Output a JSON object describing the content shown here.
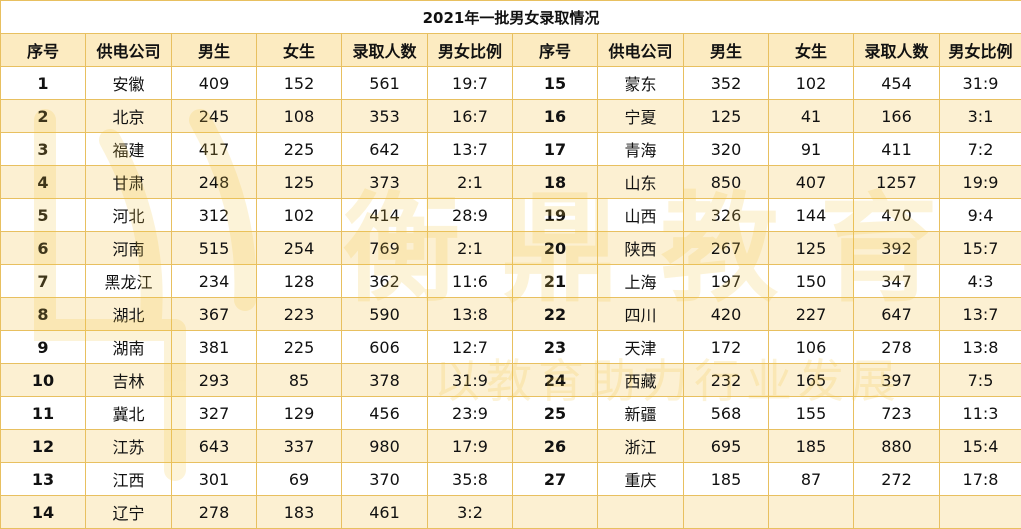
{
  "title": "2021年一批男女录取情况",
  "headers": [
    "序号",
    "供电公司",
    "男生",
    "女生",
    "录取人数",
    "男女比例",
    "序号",
    "供电公司",
    "男生",
    "女生",
    "录取人数",
    "男女比例"
  ],
  "rows": [
    [
      "1",
      "安徽",
      "409",
      "152",
      "561",
      "19:7",
      "15",
      "蒙东",
      "352",
      "102",
      "454",
      "31:9"
    ],
    [
      "2",
      "北京",
      "245",
      "108",
      "353",
      "16:7",
      "16",
      "宁夏",
      "125",
      "41",
      "166",
      "3:1"
    ],
    [
      "3",
      "福建",
      "417",
      "225",
      "642",
      "13:7",
      "17",
      "青海",
      "320",
      "91",
      "411",
      "7:2"
    ],
    [
      "4",
      "甘肃",
      "248",
      "125",
      "373",
      "2:1",
      "18",
      "山东",
      "850",
      "407",
      "1257",
      "19:9"
    ],
    [
      "5",
      "河北",
      "312",
      "102",
      "414",
      "28:9",
      "19",
      "山西",
      "326",
      "144",
      "470",
      "9:4"
    ],
    [
      "6",
      "河南",
      "515",
      "254",
      "769",
      "2:1",
      "20",
      "陕西",
      "267",
      "125",
      "392",
      "15:7"
    ],
    [
      "7",
      "黑龙江",
      "234",
      "128",
      "362",
      "11:6",
      "21",
      "上海",
      "197",
      "150",
      "347",
      "4:3"
    ],
    [
      "8",
      "湖北",
      "367",
      "223",
      "590",
      "13:8",
      "22",
      "四川",
      "420",
      "227",
      "647",
      "13:7"
    ],
    [
      "9",
      "湖南",
      "381",
      "225",
      "606",
      "12:7",
      "23",
      "天津",
      "172",
      "106",
      "278",
      "13:8"
    ],
    [
      "10",
      "吉林",
      "293",
      "85",
      "378",
      "31:9",
      "24",
      "西藏",
      "232",
      "165",
      "397",
      "7:5"
    ],
    [
      "11",
      "冀北",
      "327",
      "129",
      "456",
      "23:9",
      "25",
      "新疆",
      "568",
      "155",
      "723",
      "11:3"
    ],
    [
      "12",
      "江苏",
      "643",
      "337",
      "980",
      "17:9",
      "26",
      "浙江",
      "695",
      "185",
      "880",
      "15:4"
    ],
    [
      "13",
      "江西",
      "301",
      "69",
      "370",
      "35:8",
      "27",
      "重庆",
      "185",
      "87",
      "272",
      "17:8"
    ],
    [
      "14",
      "辽宁",
      "278",
      "183",
      "461",
      "3:2",
      "",
      "",
      "",
      "",
      "",
      ""
    ]
  ],
  "watermark": {
    "brand": "衡 鼎 教 育",
    "slogan": "以教育助力行业发展",
    "color": "#f5c842"
  }
}
